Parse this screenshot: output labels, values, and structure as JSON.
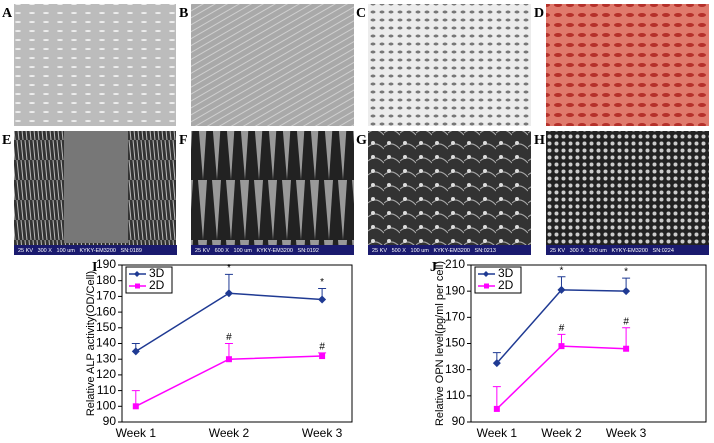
{
  "panels": [
    {
      "label": "A"
    },
    {
      "label": "B"
    },
    {
      "label": "C"
    },
    {
      "label": "D"
    },
    {
      "label": "E",
      "info": "25 KV   300 X   100 um   KYKY-EM3200   SN:0189"
    },
    {
      "label": "F",
      "info": "25 KV   600 X   100 um   KYKY-EM3200   SN:0192"
    },
    {
      "label": "G",
      "info": "25 KV   500 X   100 um   KYKY-EM3200   SN:0213"
    },
    {
      "label": "H",
      "info": "25 KV   300 X   100 um   KYKY-EM3200   SN:0224"
    }
  ],
  "chart_data": [
    {
      "type": "line",
      "panel_label": "I",
      "y_label": "Relative ALP activity(OD/Cell)",
      "categories": [
        "Week 1",
        "Week 2",
        "Week 3"
      ],
      "series": [
        {
          "name": "3D",
          "color": "#1f3a93",
          "values": [
            135,
            172,
            168
          ],
          "errors": [
            5,
            12,
            7
          ],
          "point_labels": [
            null,
            "*",
            "*"
          ]
        },
        {
          "name": "2D",
          "color": "#ff00ff",
          "values": [
            100,
            130,
            132
          ],
          "errors": [
            10,
            10,
            2
          ],
          "point_labels": [
            null,
            "#",
            "#"
          ]
        }
      ],
      "ylim": [
        90,
        190
      ],
      "yticks": [
        90,
        100,
        110,
        120,
        130,
        140,
        150,
        160,
        170,
        180,
        190
      ],
      "legend": "upper left"
    },
    {
      "type": "line",
      "panel_label": "J",
      "y_label": "Relative OPN level(pg/ml per cell)",
      "categories": [
        "Week 1",
        "Week 2",
        "Week 3"
      ],
      "series": [
        {
          "name": "3D",
          "color": "#1f3a93",
          "values": [
            135,
            191,
            190
          ],
          "errors": [
            8,
            10,
            10
          ],
          "point_labels": [
            null,
            "*",
            "*"
          ]
        },
        {
          "name": "2D",
          "color": "#ff00ff",
          "values": [
            100,
            148,
            146
          ],
          "errors": [
            17,
            9,
            16
          ],
          "point_labels": [
            null,
            "#",
            "#"
          ]
        }
      ],
      "ylim": [
        90,
        210
      ],
      "yticks": [
        90,
        110,
        130,
        150,
        170,
        190,
        210
      ],
      "legend": "upper left"
    }
  ]
}
